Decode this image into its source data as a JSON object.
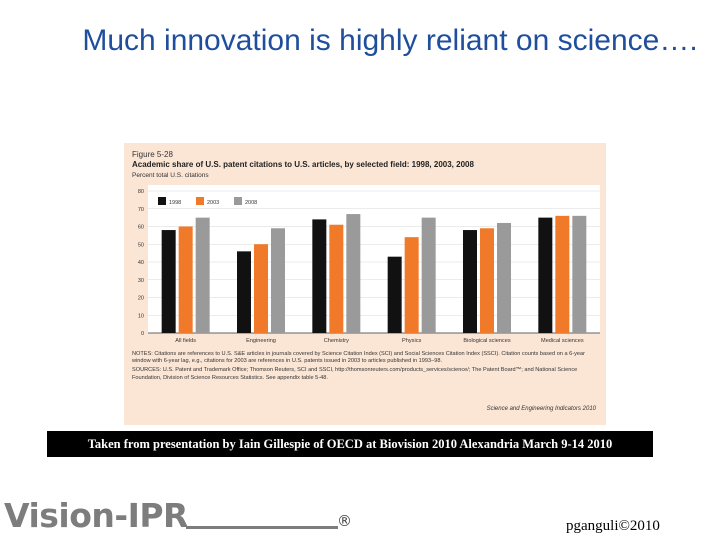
{
  "slide": {
    "title": "Much innovation is highly reliant on science….",
    "caption": "Taken from presentation by Iain Gillespie of OECD at Biovision 2010 Alexandria March 9-14 2010",
    "logo_text": "Vision-IPR",
    "copyright": "pganguli©2010"
  },
  "figure": {
    "label": "Figure 5-28",
    "notes": "NOTES: Citations are references to U.S. S&E articles in journals covered by Science Citation Index (SCI) and Social Sciences Citation Index (SSCI). Citation counts based on a 6-year window with 6-year lag, e.g., citations for 2003 are references in U.S. patents issued in 2003 to articles published in 1993–98.",
    "sources": "SOURCES: U.S. Patent and Trademark Office; Thomson Reuters, SCI and SSCI, http://thomsonreuters.com/products_services/science/; The Patent Board™; and National Science Foundation, Division of Science Resources Statistics. See appendix table 5-48.",
    "credit": "Science and Engineering Indicators 2010"
  },
  "chart_data": {
    "type": "bar",
    "title": "Academic share of U.S. patent citations to U.S. articles, by selected field: 1998, 2003, 2008",
    "ylabel": "Percent total U.S. citations",
    "xlabel": "",
    "ylim": [
      0,
      80
    ],
    "yticks": [
      0,
      10,
      20,
      30,
      40,
      50,
      60,
      70,
      80
    ],
    "grid": true,
    "legend_position": "top-left",
    "categories": [
      "All fields",
      "Engineering",
      "Chemistry",
      "Physics",
      "Biological sciences",
      "Medical sciences"
    ],
    "series": [
      {
        "name": "1998",
        "color": "#111111",
        "values": [
          58,
          46,
          64,
          43,
          58,
          65
        ]
      },
      {
        "name": "2003",
        "color": "#f07a2a",
        "values": [
          60,
          50,
          61,
          54,
          59,
          66
        ]
      },
      {
        "name": "2008",
        "color": "#9a9a9a",
        "values": [
          65,
          59,
          67,
          65,
          62,
          66
        ]
      }
    ]
  }
}
